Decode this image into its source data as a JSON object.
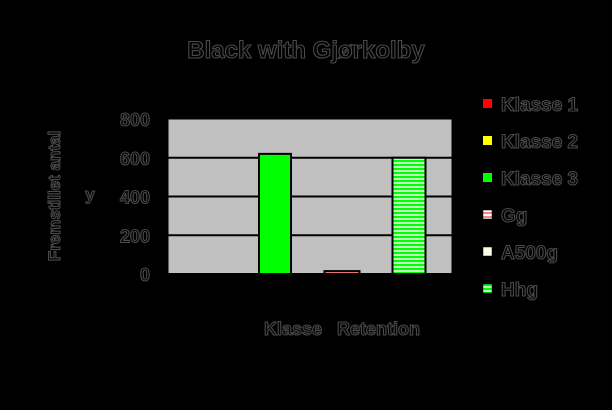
{
  "chart_data": {
    "type": "bar",
    "title": "Black with Gjørkolby",
    "xlabel": "Klasse   Retention",
    "ylabel": "Fremstillet antal",
    "y_axis_marker": "y",
    "ylim": [
      0,
      800
    ],
    "yticks": [
      0,
      200,
      400,
      600,
      800
    ],
    "yticklabels": [
      "0",
      "200",
      "400",
      "600",
      "800"
    ],
    "grid": true,
    "legend_position": "right",
    "categories": [
      "Klasse 1",
      "Klasse 2",
      "Klasse 3",
      "Gg",
      "A500g",
      "Hhg"
    ],
    "series": [
      {
        "name": "Klasse 1",
        "values": [
          0,
          0,
          0,
          0,
          0,
          0
        ],
        "color": "#ff0000",
        "pattern": "solid"
      },
      {
        "name": "Klasse 2",
        "values": [
          0,
          0,
          0,
          0,
          0,
          0
        ],
        "color": "#ffff00",
        "pattern": "solid"
      },
      {
        "name": "Klasse 3",
        "values": [
          0,
          0,
          620,
          0,
          0,
          0
        ],
        "color": "#00ff00",
        "pattern": "solid"
      },
      {
        "name": "Gg",
        "values": [
          0,
          0,
          0,
          15,
          0,
          0
        ],
        "color": "#ff8080",
        "pattern": "hatch"
      },
      {
        "name": "A500g",
        "values": [
          0,
          0,
          0,
          0,
          0,
          0
        ],
        "color": "#ffffcc",
        "pattern": "hatch"
      },
      {
        "name": "Hhg",
        "values": [
          0,
          0,
          0,
          0,
          0,
          600
        ],
        "color": "#00ff00",
        "pattern": "hatch"
      }
    ],
    "plot_background": "#c0c0c0",
    "gridline_color": "#000000"
  }
}
